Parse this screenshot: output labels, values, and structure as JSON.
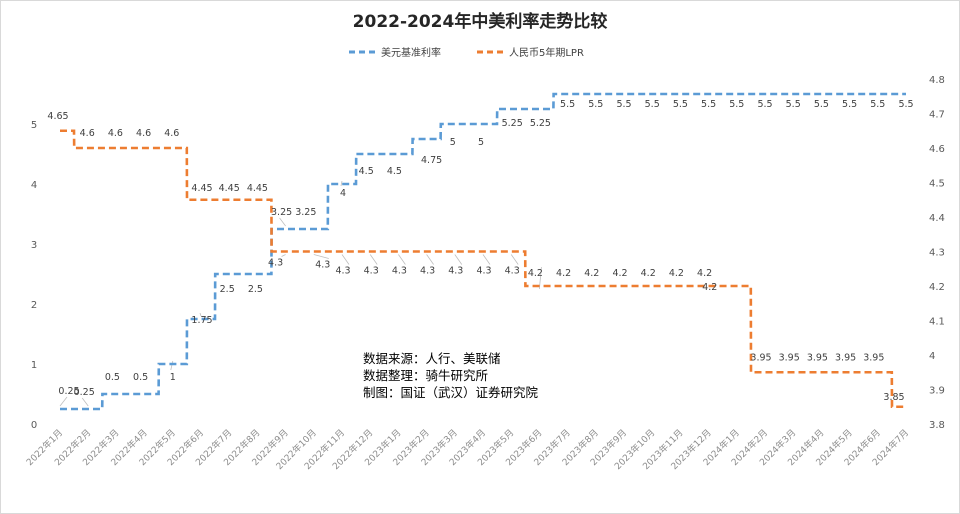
{
  "chart_data": {
    "type": "line",
    "title": "2022-2024年中美利率走势比较",
    "categories": [
      "2022年1月",
      "2022年2月",
      "2022年3月",
      "2022年4月",
      "2022年5月",
      "2022年6月",
      "2022年7月",
      "2022年8月",
      "2022年9月",
      "2022年10月",
      "2022年11月",
      "2022年12月",
      "2023年1月",
      "2023年2月",
      "2023年3月",
      "2023年4月",
      "2023年5月",
      "2023年6月",
      "2023年7月",
      "2023年8月",
      "2023年9月",
      "2023年10月",
      "2023年11月",
      "2023年12月",
      "2024年1月",
      "2024年2月",
      "2024年3月",
      "2024年4月",
      "2024年5月",
      "2024年6月",
      "2024年7月"
    ],
    "series": [
      {
        "name": "美元基准利率",
        "axis": "left",
        "color": "#5b9bd5",
        "values": [
          0.25,
          0.25,
          0.5,
          0.5,
          1,
          1.75,
          2.5,
          2.5,
          3.25,
          3.25,
          4,
          4.5,
          4.5,
          4.75,
          5,
          5,
          5.25,
          5.25,
          5.5,
          5.5,
          5.5,
          5.5,
          5.5,
          5.5,
          5.5,
          5.5,
          5.5,
          5.5,
          5.5,
          5.5,
          5.5
        ]
      },
      {
        "name": "人民币5年期LPR",
        "axis": "right",
        "color": "#ed7d31",
        "values": [
          4.65,
          4.6,
          4.6,
          4.6,
          4.6,
          4.45,
          4.45,
          4.45,
          4.3,
          4.3,
          4.3,
          4.3,
          4.3,
          4.3,
          4.3,
          4.3,
          4.3,
          4.2,
          4.2,
          4.2,
          4.2,
          4.2,
          4.2,
          4.2,
          4.2,
          3.95,
          3.95,
          3.95,
          3.95,
          3.95,
          3.85
        ]
      }
    ],
    "y_left": {
      "ylim": [
        0,
        5.75
      ],
      "ticks": [
        "0",
        "1",
        "2",
        "3",
        "4",
        "5"
      ]
    },
    "y_right": {
      "ylim": [
        3.8,
        4.8
      ],
      "ticks": [
        "3.8",
        "3.9",
        "4",
        "4.1",
        "4.2",
        "4.3",
        "4.4",
        "4.5",
        "4.6",
        "4.7",
        "4.8"
      ]
    },
    "legend_position": "top-center",
    "grid": false,
    "annotation": [
      "数据来源：人行、美联储",
      "数据整理：骑牛研究所",
      "制图：国证（武汉）证券研究院"
    ]
  }
}
